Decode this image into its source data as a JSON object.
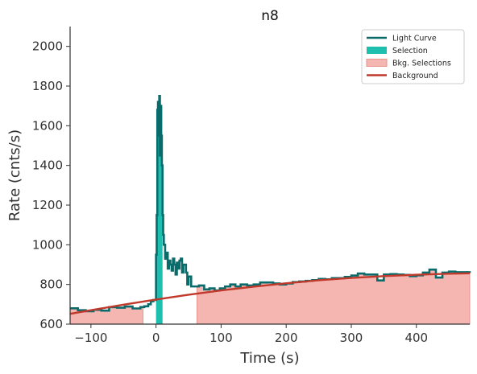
{
  "chart_data": {
    "type": "line",
    "title": "n8",
    "xlabel": "Time (s)",
    "ylabel": "Rate (cnts/s)",
    "xlim": [
      -132,
      482
    ],
    "ylim": [
      600,
      2100
    ],
    "xticks": [
      -100,
      0,
      100,
      200,
      300,
      400
    ],
    "xtick_labels": [
      "−100",
      "0",
      "100",
      "200",
      "300",
      "400"
    ],
    "yticks": [
      600,
      800,
      1000,
      1200,
      1400,
      1600,
      1800,
      2000
    ],
    "ytick_labels": [
      "600",
      "800",
      "1000",
      "1200",
      "1400",
      "1600",
      "1800",
      "2000"
    ],
    "grid": false,
    "legend_position": "top-right",
    "legend": [
      {
        "label": "Light Curve",
        "kind": "line",
        "color": "#0a6b6b"
      },
      {
        "label": "Selection",
        "kind": "patch",
        "color": "#1fbfb0"
      },
      {
        "label": "Bkg. Selections",
        "kind": "patch",
        "color": "#f5b5b0"
      },
      {
        "label": "Background",
        "kind": "line",
        "color": "#c0392b"
      }
    ],
    "selection": {
      "x_start": 0,
      "x_end": 10
    },
    "bkg_selections": [
      {
        "x_start": -132,
        "x_end": -20
      },
      {
        "x_start": 63,
        "x_end": 482
      }
    ],
    "background_model": {
      "x": [
        -132,
        -100,
        -50,
        0,
        50,
        100,
        150,
        200,
        250,
        300,
        350,
        400,
        450,
        482
      ],
      "y": [
        652,
        670,
        698,
        724,
        748,
        770,
        789,
        806,
        821,
        833,
        842,
        849,
        854,
        856
      ]
    },
    "light_curve": {
      "x": [
        -132,
        -120,
        -108,
        -96,
        -84,
        -72,
        -60,
        -48,
        -36,
        -24,
        -18,
        -12,
        -8,
        -4,
        0,
        1,
        2,
        3,
        4,
        5,
        6,
        7,
        8,
        9,
        10,
        11,
        12,
        14,
        16,
        18,
        20,
        22,
        24,
        26,
        28,
        30,
        32,
        34,
        36,
        38,
        40,
        42,
        44,
        46,
        48,
        50,
        54,
        58,
        62,
        66,
        74,
        82,
        90,
        98,
        106,
        114,
        122,
        130,
        140,
        150,
        160,
        170,
        180,
        190,
        200,
        210,
        220,
        230,
        240,
        250,
        260,
        270,
        280,
        290,
        300,
        310,
        320,
        330,
        340,
        350,
        360,
        370,
        380,
        390,
        400,
        410,
        420,
        430,
        440,
        450,
        460,
        470,
        482
      ],
      "y": [
        680,
        670,
        665,
        672,
        668,
        686,
        683,
        689,
        679,
        686,
        690,
        700,
        715,
        722,
        950,
        1150,
        1680,
        1720,
        1550,
        1750,
        1450,
        1700,
        1550,
        1400,
        1150,
        1050,
        1000,
        930,
        960,
        880,
        920,
        900,
        870,
        930,
        900,
        850,
        910,
        880,
        920,
        930,
        860,
        900,
        900,
        860,
        800,
        840,
        790,
        790,
        790,
        795,
        775,
        780,
        770,
        780,
        790,
        800,
        790,
        800,
        795,
        800,
        810,
        810,
        805,
        800,
        805,
        812,
        815,
        818,
        822,
        828,
        826,
        832,
        832,
        838,
        845,
        855,
        850,
        850,
        820,
        850,
        852,
        850,
        848,
        842,
        846,
        860,
        875,
        835,
        860,
        865,
        862,
        862,
        858
      ]
    }
  }
}
